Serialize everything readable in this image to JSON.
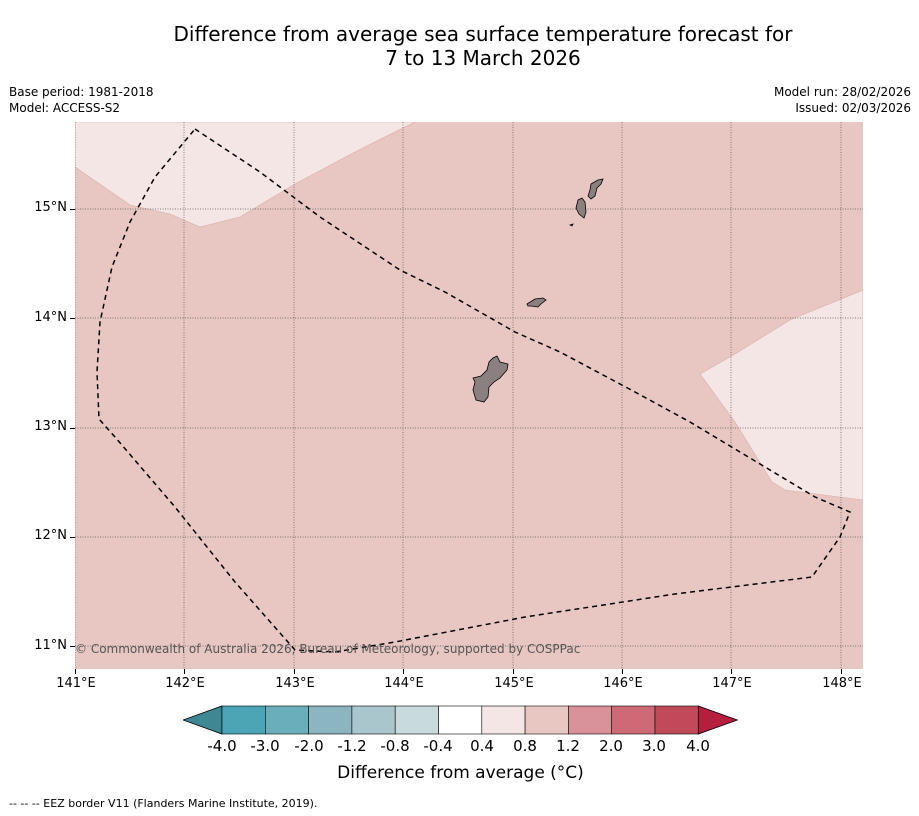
{
  "title": {
    "line1": "Difference from average sea surface temperature forecast for",
    "line2": "7 to 13 March 2026"
  },
  "meta_left": {
    "base_period": "Base period: 1981-2018",
    "model": "Model: ACCESS-S2"
  },
  "meta_right": {
    "model_run": "Model run: 28/02/2026",
    "issued": "Issued: 02/03/2026"
  },
  "y_axis": [
    "15°N",
    "14°N",
    "13°N",
    "12°N",
    "11°N"
  ],
  "x_axis": [
    "141°E",
    "142°E",
    "143°E",
    "144°E",
    "145°E",
    "146°E",
    "147°E",
    "148°E"
  ],
  "copyright": "© Commonwealth of Australia 2026, Bureau of Meteorology, supported by COSPPac",
  "colorbar": {
    "labels": [
      "-4.0",
      "-3.0",
      "-2.0",
      "-1.2",
      "-0.8",
      "-0.4",
      "0.4",
      "0.8",
      "1.2",
      "2.0",
      "3.0",
      "4.0"
    ],
    "colors": [
      "#3e8794",
      "#4ba5b4",
      "#6aaebc",
      "#8bb5c1",
      "#a8c6cb",
      "#c9dadd",
      "#ffffff",
      "#f4e6e4",
      "#e8c7c2",
      "#d9919a",
      "#cd6a75",
      "#c24959",
      "#b51f3f"
    ],
    "title": "Difference from average (°C)"
  },
  "map_colors": {
    "base": "#e8c7c2",
    "light": "#f4e6e4",
    "land": "#8a8080"
  },
  "footnote": "-- -- -- EEZ border V11 (Flanders Marine Institute, 2019)."
}
